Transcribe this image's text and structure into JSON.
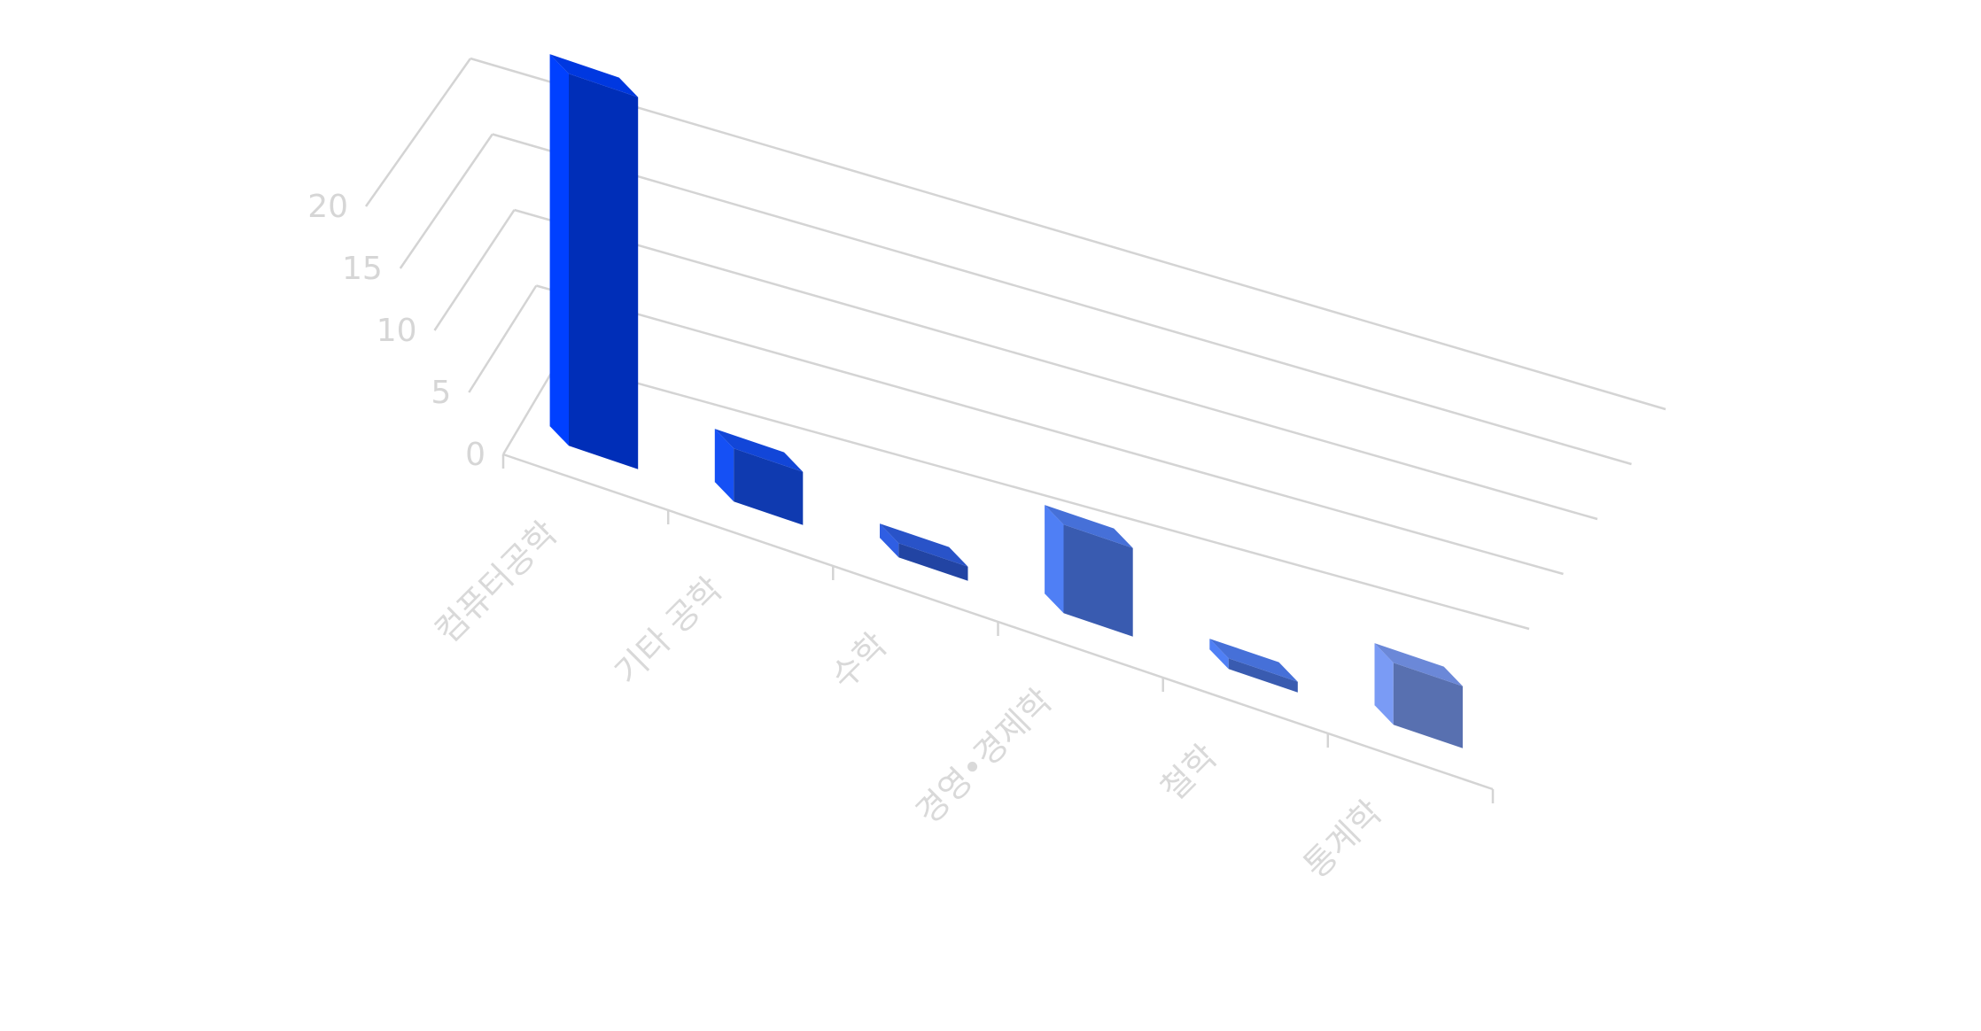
{
  "chart_data": {
    "type": "bar",
    "title": "",
    "xlabel": "",
    "ylabel": "",
    "categories": [
      "컴퓨터공학",
      "기타 공학",
      "수학",
      "경영•경제학",
      "철학",
      "통계학"
    ],
    "values": [
      21,
      3,
      0.8,
      5,
      0.6,
      3.5
    ],
    "ylim": [
      0,
      20
    ],
    "yticks": [
      0,
      5,
      10,
      15,
      20
    ],
    "grid": true,
    "legend": "none",
    "colors": {
      "bars": [
        "#0040ff",
        "#1550f5",
        "#2f5ee3",
        "#4f7ff5",
        "#4f7ff5",
        "#7a9bf5"
      ],
      "grid": "#d4d4d4",
      "ticks": "#d6d6d6"
    }
  }
}
